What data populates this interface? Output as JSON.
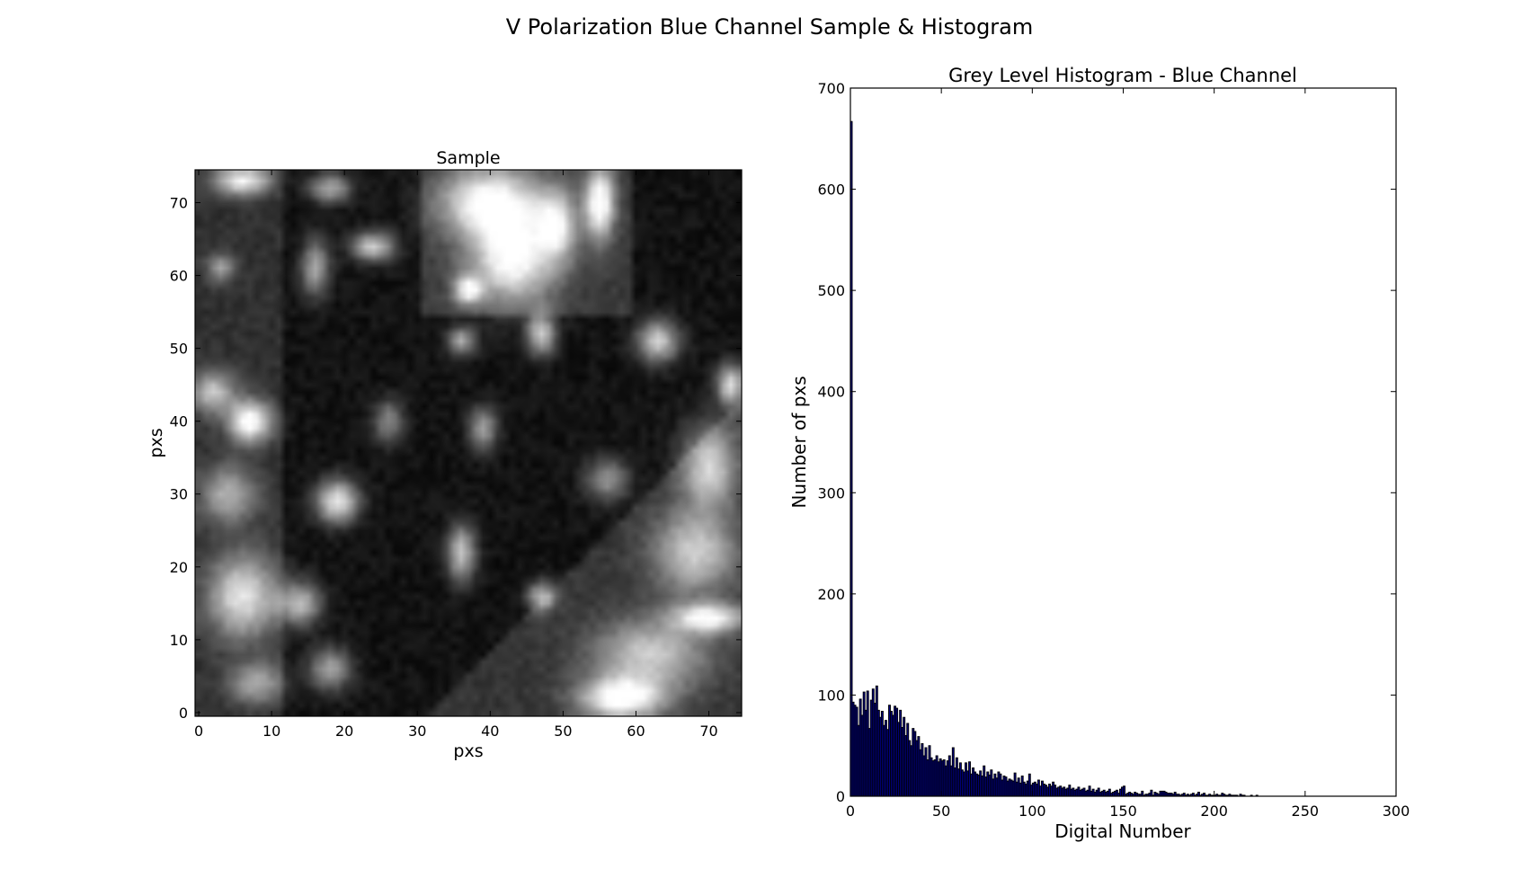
{
  "figure": {
    "title": "V Polarization Blue Channel Sample & Histogram"
  },
  "chart_data": [
    {
      "type": "heatmap",
      "title": "Sample",
      "xlabel": "pxs",
      "ylabel": "pxs",
      "xlim": [
        -0.5,
        74.5
      ],
      "ylim": [
        74.5,
        -0.5
      ],
      "xticks": [
        0,
        10,
        20,
        30,
        40,
        50,
        60,
        70
      ],
      "yticks": [
        0,
        10,
        20,
        30,
        40,
        50,
        60,
        70
      ],
      "colormap": "grey",
      "grid_size": [
        75,
        75
      ],
      "bright_regions": [
        {
          "x": 6,
          "y": 1,
          "rx": 4,
          "ry": 2,
          "v": 200
        },
        {
          "x": 18,
          "y": 2,
          "rx": 3,
          "ry": 2,
          "v": 150
        },
        {
          "x": 40,
          "y": 4,
          "rx": 7,
          "ry": 5,
          "v": 220
        },
        {
          "x": 43,
          "y": 12,
          "rx": 6,
          "ry": 6,
          "v": 200
        },
        {
          "x": 49,
          "y": 7,
          "rx": 3,
          "ry": 5,
          "v": 170
        },
        {
          "x": 55,
          "y": 4,
          "rx": 2,
          "ry": 5,
          "v": 235
        },
        {
          "x": 24,
          "y": 10,
          "rx": 3,
          "ry": 2,
          "v": 190
        },
        {
          "x": 3,
          "y": 13,
          "rx": 2,
          "ry": 2,
          "v": 110
        },
        {
          "x": 16,
          "y": 13,
          "rx": 2,
          "ry": 4,
          "v": 150
        },
        {
          "x": 37,
          "y": 16,
          "rx": 2,
          "ry": 2,
          "v": 190
        },
        {
          "x": 47,
          "y": 22,
          "rx": 2,
          "ry": 3,
          "v": 185
        },
        {
          "x": 36,
          "y": 23,
          "rx": 2,
          "ry": 2,
          "v": 150
        },
        {
          "x": 63,
          "y": 23,
          "rx": 3,
          "ry": 3,
          "v": 185
        },
        {
          "x": 2,
          "y": 30,
          "rx": 3,
          "ry": 3,
          "v": 150
        },
        {
          "x": 7,
          "y": 34,
          "rx": 3,
          "ry": 3,
          "v": 225
        },
        {
          "x": 26,
          "y": 34,
          "rx": 2,
          "ry": 3,
          "v": 120
        },
        {
          "x": 39,
          "y": 35,
          "rx": 2,
          "ry": 3,
          "v": 140
        },
        {
          "x": 73,
          "y": 29,
          "rx": 2,
          "ry": 3,
          "v": 200
        },
        {
          "x": 4,
          "y": 44,
          "rx": 4,
          "ry": 4,
          "v": 130
        },
        {
          "x": 19,
          "y": 45,
          "rx": 3,
          "ry": 3,
          "v": 220
        },
        {
          "x": 56,
          "y": 42,
          "rx": 3,
          "ry": 3,
          "v": 130
        },
        {
          "x": 70,
          "y": 40,
          "rx": 4,
          "ry": 6,
          "v": 160
        },
        {
          "x": 36,
          "y": 52,
          "rx": 2,
          "ry": 4,
          "v": 180
        },
        {
          "x": 68,
          "y": 52,
          "rx": 6,
          "ry": 6,
          "v": 150
        },
        {
          "x": 6,
          "y": 58,
          "rx": 5,
          "ry": 6,
          "v": 180
        },
        {
          "x": 14,
          "y": 59,
          "rx": 3,
          "ry": 3,
          "v": 160
        },
        {
          "x": 47,
          "y": 58,
          "rx": 2,
          "ry": 2,
          "v": 170
        },
        {
          "x": 70,
          "y": 61,
          "rx": 5,
          "ry": 2,
          "v": 200
        },
        {
          "x": 18,
          "y": 68,
          "rx": 3,
          "ry": 3,
          "v": 140
        },
        {
          "x": 62,
          "y": 66,
          "rx": 8,
          "ry": 5,
          "v": 150
        },
        {
          "x": 58,
          "y": 72,
          "rx": 6,
          "ry": 3,
          "v": 220
        },
        {
          "x": 8,
          "y": 70,
          "rx": 4,
          "ry": 3,
          "v": 120
        }
      ]
    },
    {
      "type": "bar",
      "title": "Grey Level Histogram - Blue Channel",
      "xlabel": "Digital Number",
      "ylabel": "Number of pxs",
      "xlim": [
        0,
        300
      ],
      "ylim": [
        0,
        700
      ],
      "xticks": [
        0,
        50,
        100,
        150,
        200,
        250,
        300
      ],
      "yticks": [
        0,
        100,
        200,
        300,
        400,
        500,
        600,
        700
      ],
      "bin_width": 1,
      "bar_color": "#000080",
      "edge_color": "#000000",
      "x": [
        0,
        1,
        2,
        3,
        4,
        5,
        6,
        7,
        8,
        9,
        10,
        11,
        12,
        13,
        14,
        15,
        16,
        17,
        18,
        19,
        20,
        21,
        22,
        23,
        24,
        25,
        26,
        27,
        28,
        29,
        30,
        31,
        32,
        33,
        34,
        35,
        36,
        37,
        38,
        39,
        40,
        41,
        42,
        43,
        44,
        45,
        46,
        47,
        48,
        49,
        50,
        51,
        52,
        53,
        54,
        55,
        56,
        57,
        58,
        59,
        60,
        61,
        62,
        63,
        64,
        65,
        66,
        67,
        68,
        69,
        70,
        71,
        72,
        73,
        74,
        75,
        76,
        77,
        78,
        79,
        80,
        81,
        82,
        83,
        84,
        85,
        86,
        87,
        88,
        89,
        90,
        91,
        92,
        93,
        94,
        95,
        96,
        97,
        98,
        99,
        100,
        101,
        102,
        103,
        104,
        105,
        106,
        107,
        108,
        109,
        110,
        111,
        112,
        113,
        114,
        115,
        116,
        117,
        118,
        119,
        120,
        121,
        122,
        123,
        124,
        125,
        126,
        127,
        128,
        129,
        130,
        131,
        132,
        133,
        134,
        135,
        136,
        137,
        138,
        139,
        140,
        141,
        142,
        143,
        144,
        145,
        146,
        147,
        148,
        149,
        150,
        151,
        152,
        153,
        154,
        155,
        156,
        157,
        158,
        159,
        160,
        161,
        162,
        163,
        164,
        165,
        166,
        167,
        168,
        169,
        170,
        171,
        172,
        173,
        174,
        175,
        176,
        177,
        178,
        179,
        180,
        181,
        182,
        183,
        184,
        185,
        186,
        187,
        188,
        189,
        190,
        191,
        192,
        193,
        194,
        195,
        196,
        197,
        198,
        199,
        200,
        201,
        202,
        203,
        204,
        205,
        206,
        207,
        208,
        209,
        210,
        211,
        212,
        213,
        214,
        215,
        216,
        217,
        218,
        219,
        220,
        221,
        222,
        223
      ],
      "values": [
        667,
        93,
        90,
        88,
        70,
        96,
        80,
        103,
        85,
        104,
        67,
        95,
        106,
        92,
        109,
        85,
        78,
        84,
        70,
        75,
        66,
        90,
        84,
        80,
        89,
        87,
        73,
        85,
        68,
        78,
        60,
        72,
        55,
        50,
        67,
        64,
        55,
        59,
        46,
        52,
        40,
        48,
        36,
        50,
        38,
        35,
        36,
        40,
        34,
        37,
        35,
        36,
        30,
        35,
        40,
        30,
        48,
        28,
        38,
        27,
        33,
        26,
        24,
        33,
        25,
        34,
        22,
        28,
        24,
        22,
        21,
        25,
        20,
        30,
        19,
        24,
        21,
        26,
        17,
        22,
        18,
        24,
        22,
        16,
        20,
        19,
        15,
        17,
        16,
        15,
        23,
        14,
        18,
        13,
        20,
        14,
        12,
        15,
        22,
        11,
        13,
        14,
        12,
        16,
        10,
        15,
        12,
        11,
        9,
        12,
        10,
        14,
        11,
        8,
        9,
        10,
        8,
        9,
        7,
        8,
        11,
        7,
        8,
        6,
        7,
        9,
        6,
        7,
        8,
        5,
        6,
        10,
        5,
        7,
        4,
        6,
        8,
        4,
        5,
        6,
        4,
        5,
        7,
        3,
        4,
        5,
        6,
        3,
        7,
        9,
        10,
        2,
        3,
        4,
        3,
        2,
        4,
        3,
        2,
        2,
        5,
        1,
        2,
        2,
        3,
        6,
        1,
        4,
        3,
        2,
        5,
        5,
        5,
        4,
        3,
        3,
        3,
        2,
        4,
        2,
        2,
        1,
        2,
        3,
        1,
        2,
        1,
        2,
        3,
        1,
        2,
        4,
        1,
        2,
        3,
        1,
        1,
        2,
        1,
        1,
        1,
        2,
        1,
        1,
        3,
        2,
        1,
        1,
        2,
        1,
        1,
        1,
        1,
        0,
        2,
        1,
        1,
        0,
        0,
        0,
        1,
        0,
        0,
        1
      ]
    }
  ]
}
